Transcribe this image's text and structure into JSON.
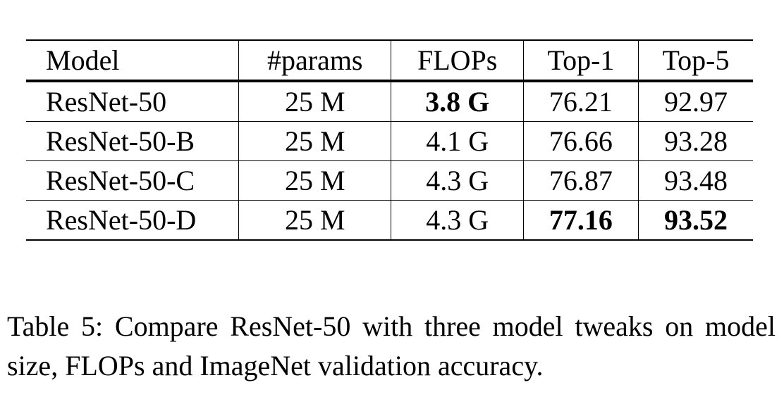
{
  "table": {
    "header": [
      "Model",
      "#params",
      "FLOPs",
      "Top-1",
      "Top-5"
    ],
    "rows": [
      [
        "ResNet-50",
        "25 M",
        "3.8 G",
        "76.21",
        "92.97"
      ],
      [
        "ResNet-50-B",
        "25 M",
        "4.1 G",
        "76.66",
        "93.28"
      ],
      [
        "ResNet-50-C",
        "25 M",
        "4.3 G",
        "76.87",
        "93.48"
      ],
      [
        "ResNet-50-D",
        "25 M",
        "4.3 G",
        "77.16",
        "93.52"
      ]
    ]
  },
  "caption": "Table 5: Compare ResNet-50 with three model tweaks on model size, FLOPs and ImageNet validation accuracy."
}
